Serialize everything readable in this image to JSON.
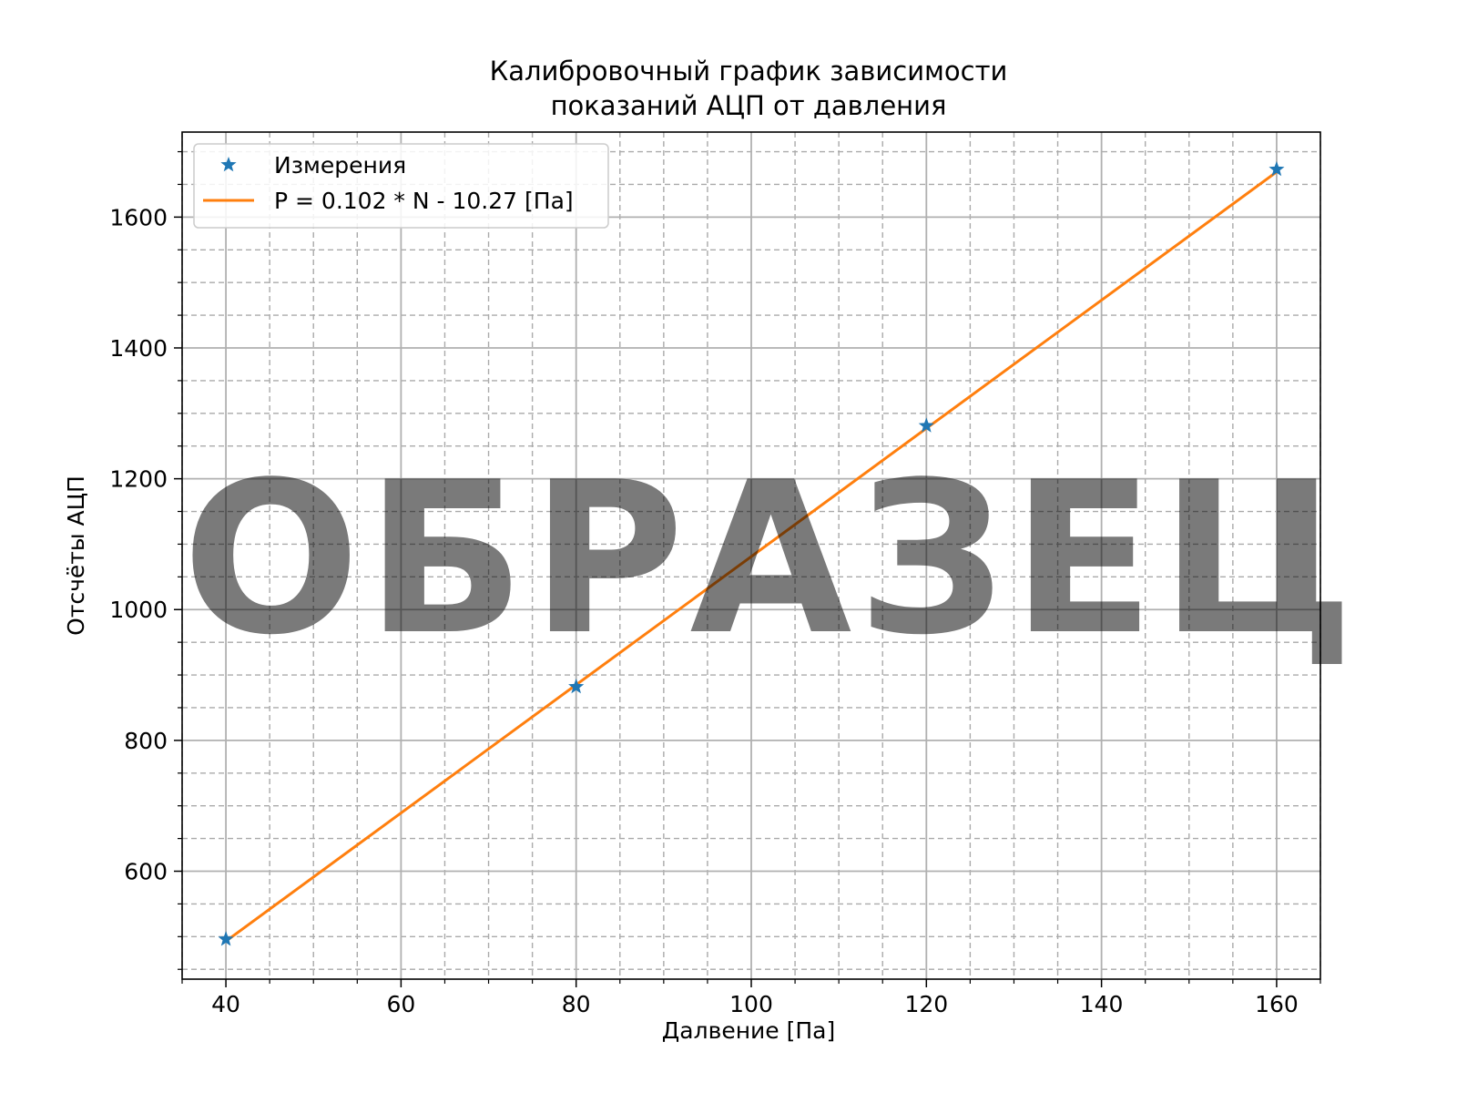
{
  "chart_data": {
    "type": "line",
    "title_lines": [
      "Калибровочный график зависимости",
      "показаний АЦП от давления"
    ],
    "xlabel": "Далвение [Па]",
    "ylabel": "Отсчёты АЦП",
    "xlim": [
      35,
      165
    ],
    "ylim": [
      435,
      1730
    ],
    "x_ticks": [
      40,
      60,
      80,
      100,
      120,
      140,
      160
    ],
    "y_ticks": [
      600,
      800,
      1000,
      1200,
      1400,
      1600
    ],
    "x_minor_step": 5,
    "y_minor_step": 50,
    "grid": true,
    "legend_position": "top-left",
    "series": [
      {
        "name": "Измерения",
        "kind": "scatter",
        "marker": "star",
        "color": "#1f77b4",
        "x": [
          40,
          80,
          120,
          160
        ],
        "y": [
          496,
          882,
          1281,
          1673
        ]
      },
      {
        "name": "P = 0.102 * N - 10.27 [Па]",
        "kind": "line",
        "color": "#ff7f0e",
        "x": [
          40,
          160
        ],
        "y": [
          493,
          1669
        ]
      }
    ],
    "watermark": "ОБРАЗЕЦ"
  }
}
